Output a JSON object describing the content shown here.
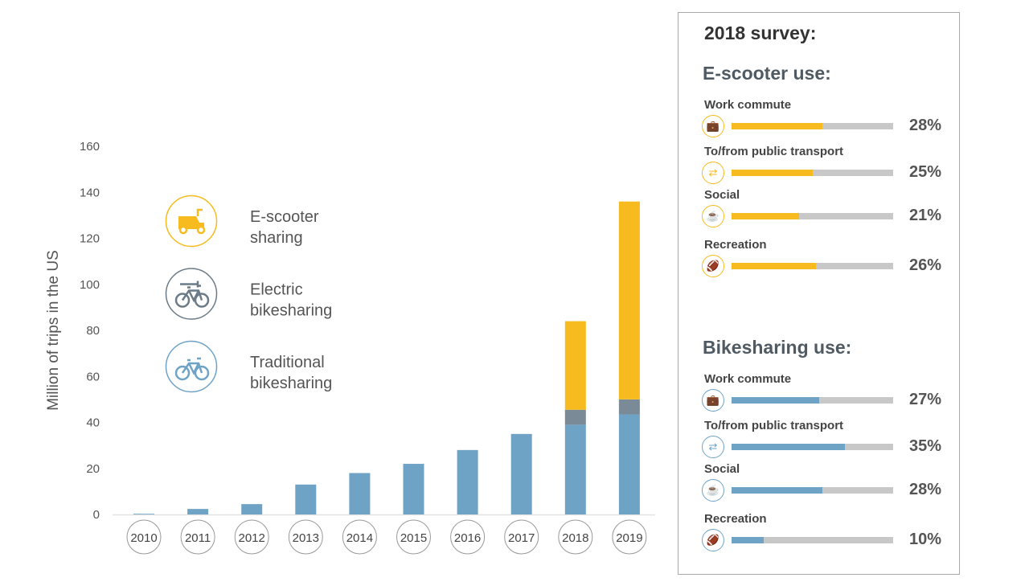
{
  "chart_data": {
    "type": "bar",
    "stacked": true,
    "ylabel": "Million of trips in the US",
    "ylim": [
      0,
      160
    ],
    "yticks": [
      0,
      20,
      40,
      60,
      80,
      100,
      120,
      140,
      160
    ],
    "grid": false,
    "categories": [
      "2010",
      "2011",
      "2012",
      "2013",
      "2014",
      "2015",
      "2016",
      "2017",
      "2018",
      "2019"
    ],
    "series": [
      {
        "name": "Traditional bikesharing",
        "color": "#6fa3c6",
        "values": [
          0.3,
          2.4,
          4.5,
          13,
          18,
          22,
          28,
          35,
          39,
          43.5
        ]
      },
      {
        "name": "Electric bikesharing",
        "color": "#7a8a96",
        "values": [
          0,
          0,
          0,
          0,
          0,
          0,
          0,
          0,
          6.5,
          6.5
        ]
      },
      {
        "name": "E-scooter sharing",
        "color": "#f7bb1f",
        "values": [
          0,
          0,
          0,
          0,
          0,
          0,
          0,
          0,
          38.5,
          86
        ]
      }
    ],
    "legend": [
      {
        "line1": "E-scooter",
        "line2": "sharing",
        "icon": "scooter-icon",
        "color": "#f7bb1f"
      },
      {
        "line1": "Electric",
        "line2": "bikesharing",
        "icon": "electric-bike-icon",
        "color": "#6b7b87"
      },
      {
        "line1": "Traditional",
        "line2": "bikesharing",
        "icon": "bike-icon",
        "color": "#6fa3c6"
      }
    ],
    "legend_placement": "top-left"
  },
  "survey": {
    "title": "2018 survey:",
    "sections": [
      {
        "title": "E-scooter use:",
        "color": "#f7bb1f",
        "rows": [
          {
            "label": "Work commute",
            "icon": "briefcase-icon",
            "glyph": "💼",
            "value": 28,
            "pct": "28%"
          },
          {
            "label": "To/from public transport",
            "icon": "transfer-arrows-icon",
            "glyph": "⇄",
            "value": 25,
            "pct": "25%"
          },
          {
            "label": "Social",
            "icon": "coffee-cup-icon",
            "glyph": "☕",
            "value": 21,
            "pct": "21%"
          },
          {
            "label": "Recreation",
            "icon": "football-icon",
            "glyph": "🏈",
            "value": 26,
            "pct": "26%"
          }
        ]
      },
      {
        "title": "Bikesharing use:",
        "color": "#6fa3c6",
        "rows": [
          {
            "label": "Work commute",
            "icon": "briefcase-icon",
            "glyph": "💼",
            "value": 27,
            "pct": "27%"
          },
          {
            "label": "To/from public transport",
            "icon": "transfer-arrows-icon",
            "glyph": "⇄",
            "value": 35,
            "pct": "35%"
          },
          {
            "label": "Social",
            "icon": "coffee-cup-icon",
            "glyph": "☕",
            "value": 28,
            "pct": "28%"
          },
          {
            "label": "Recreation",
            "icon": "football-icon",
            "glyph": "🏈",
            "value": 10,
            "pct": "10%"
          }
        ]
      }
    ]
  }
}
